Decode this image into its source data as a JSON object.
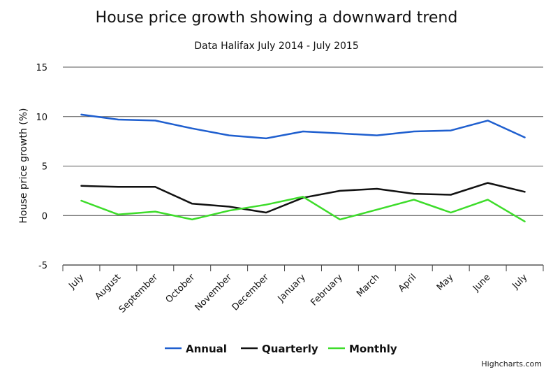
{
  "chart_data": {
    "type": "line",
    "title": "House price growth showing a downward trend",
    "subtitle": "Data Halifax July 2014 - July 2015",
    "xlabel": "",
    "ylabel": "House price growth (%)",
    "ylim": [
      -5,
      15
    ],
    "yticks": [
      -5,
      0,
      5,
      10,
      15
    ],
    "grid": true,
    "legend_position": "bottom",
    "credit": "Highcharts.com",
    "categories": [
      "July",
      "August",
      "September",
      "October",
      "November",
      "December",
      "January",
      "February",
      "March",
      "April",
      "May",
      "June",
      "July"
    ],
    "series": [
      {
        "name": "Annual",
        "color": "#1f5fcf",
        "values": [
          10.2,
          9.7,
          9.6,
          8.8,
          8.1,
          7.8,
          8.5,
          8.3,
          8.1,
          8.5,
          8.6,
          9.6,
          7.9
        ]
      },
      {
        "name": "Quarterly",
        "color": "#111111",
        "values": [
          3.0,
          2.9,
          2.9,
          1.2,
          0.9,
          0.3,
          1.8,
          2.5,
          2.7,
          2.2,
          2.1,
          3.3,
          2.4
        ]
      },
      {
        "name": "Monthly",
        "color": "#3ddc2a",
        "values": [
          1.5,
          0.1,
          0.4,
          -0.4,
          0.5,
          1.1,
          1.9,
          -0.4,
          0.6,
          1.6,
          0.3,
          1.6,
          -0.6
        ]
      }
    ]
  }
}
